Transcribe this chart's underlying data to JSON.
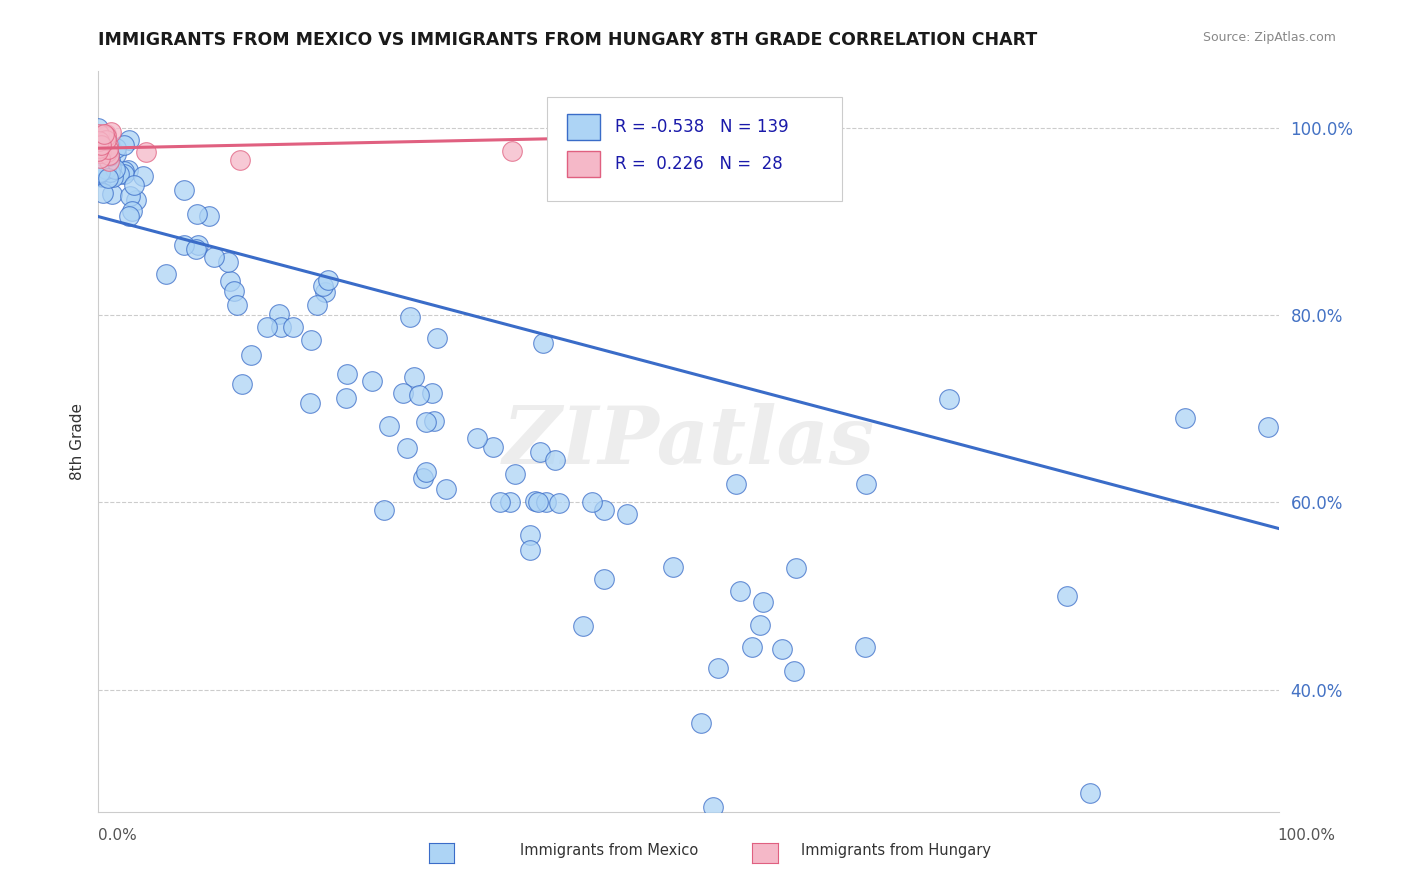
{
  "title": "IMMIGRANTS FROM MEXICO VS IMMIGRANTS FROM HUNGARY 8TH GRADE CORRELATION CHART",
  "source": "Source: ZipAtlas.com",
  "ylabel": "8th Grade",
  "xlim": [
    0.0,
    1.0
  ],
  "ylim": [
    0.27,
    1.06
  ],
  "yticks": [
    0.4,
    0.6,
    0.8,
    1.0
  ],
  "ytick_labels": [
    "40.0%",
    "60.0%",
    "80.0%",
    "100.0%"
  ],
  "r_mexico": -0.538,
  "n_mexico": 139,
  "r_hungary": 0.226,
  "n_hungary": 28,
  "color_mexico": "#add4f5",
  "color_hungary": "#f5b8c8",
  "line_color_mexico": "#3a6cc8",
  "line_color_hungary": "#e06080",
  "background_color": "#ffffff",
  "mexico_line_start_y": 0.905,
  "mexico_line_end_y": 0.572,
  "hungary_line_start_y": 0.978,
  "hungary_line_end_x": 0.38,
  "hungary_line_end_y": 0.988
}
